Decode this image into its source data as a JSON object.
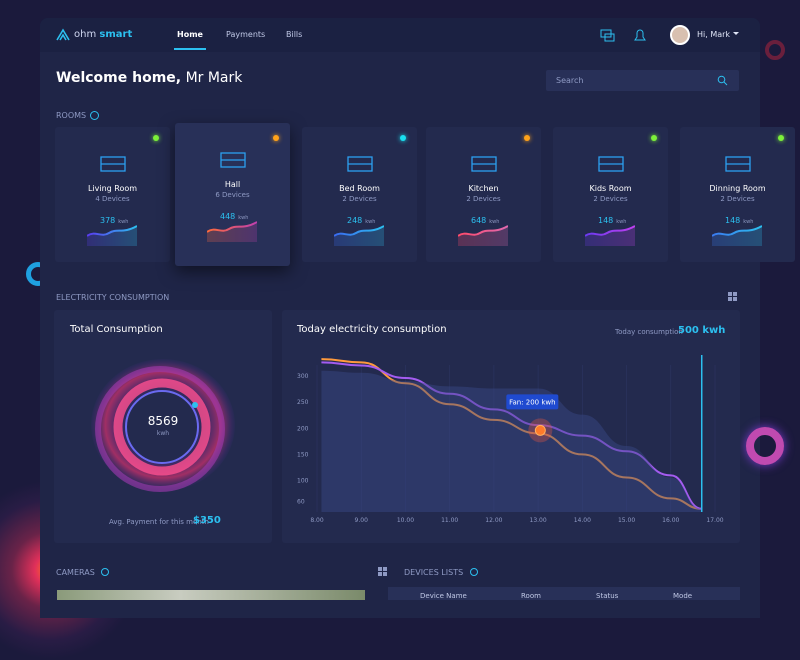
{
  "header": {
    "brand_a": "ohm",
    "brand_b": "smart",
    "nav": [
      "Home",
      "Payments",
      "Bills"
    ],
    "user": "Hi, Mark"
  },
  "welcome": {
    "greeting": "Welcome home,",
    "name": "Mr Mark",
    "search": "Search"
  },
  "rooms": {
    "title": "ROOMS",
    "unit": "kwh",
    "items": [
      {
        "name": "Living Room",
        "devices": "4 Devices",
        "usage": "378",
        "dot": "#7cf03a"
      },
      {
        "name": "Hall",
        "devices": "6 Devices",
        "usage": "448",
        "dot": "#ffa21a"
      },
      {
        "name": "Bed Room",
        "devices": "2 Devices",
        "usage": "248",
        "dot": "#19e0f0"
      },
      {
        "name": "Kitchen",
        "devices": "2 Devices",
        "usage": "648",
        "dot": "#ffa21a"
      },
      {
        "name": "Kids Room",
        "devices": "2 Devices",
        "usage": "148",
        "dot": "#7cf03a"
      },
      {
        "name": "Dinning Room",
        "devices": "2 Devices",
        "usage": "148",
        "dot": "#7cf03a"
      }
    ]
  },
  "electricity": {
    "title": "ELECTRICITY CONSUMPTION"
  },
  "total": {
    "title": "Total Consumption",
    "value": "8569",
    "unit": "kwh",
    "payment_label": "Avg. Payment for this month",
    "payment": "$350"
  },
  "chart_data": {
    "type": "line",
    "title": "Today electricity consumption",
    "summary_label": "Today consumption",
    "summary_value": "500 kwh",
    "x": [
      8.1,
      9,
      10,
      11,
      12,
      13,
      14,
      15,
      16,
      16.7
    ],
    "series": [
      {
        "color": "#ff9a3c",
        "values": [
          332,
          326,
          286,
          246,
          216,
          190,
          150,
          106,
          66,
          46
        ]
      },
      {
        "color": "#a45cf0",
        "values": [
          326,
          320,
          296,
          266,
          236,
          206,
          186,
          156,
          110,
          46
        ]
      },
      {
        "color": "#3a4a8a",
        "fill": true,
        "values": [
          310,
          306,
          290,
          280,
          276,
          276,
          226,
          166,
          106,
          46
        ]
      }
    ],
    "annotation": {
      "text": "Fan: 200 kwh",
      "x": 13.05,
      "y": 196
    },
    "marker_x": 16.7,
    "xlim": [
      8,
      17
    ],
    "ylim": [
      40,
      340
    ],
    "xticks": [
      {
        "value": 8,
        "label": "8.00"
      },
      {
        "value": 9,
        "label": "9.00"
      },
      {
        "value": 10,
        "label": "10.00"
      },
      {
        "value": 11,
        "label": "11.00"
      },
      {
        "value": 12,
        "label": "12.00"
      },
      {
        "value": 13,
        "label": "13.00"
      },
      {
        "value": 14,
        "label": "14.00"
      },
      {
        "value": 15,
        "label": "15.00"
      },
      {
        "value": 16,
        "label": "16.00"
      },
      {
        "value": 17,
        "label": "17.00"
      }
    ],
    "yticks": [
      60,
      100,
      150,
      200,
      250,
      300
    ],
    "grid": true
  },
  "cameras": {
    "title": "CAMERAS"
  },
  "devices": {
    "title": "DEVICES LISTS",
    "columns": [
      "Device Name",
      "Room",
      "Status",
      "Mode"
    ]
  }
}
